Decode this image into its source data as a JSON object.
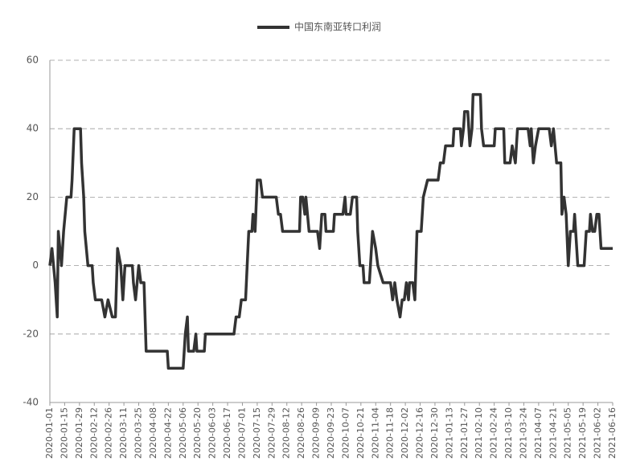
{
  "chart_data": {
    "type": "line",
    "x": [
      "2020-01-01",
      "2020-01-03",
      "2020-01-06",
      "2020-01-08",
      "2020-01-09",
      "2020-01-12",
      "2020-01-14",
      "2020-01-17",
      "2020-01-21",
      "2020-01-22",
      "2020-01-24",
      "2020-01-30",
      "2020-01-31",
      "2020-02-02",
      "2020-02-03",
      "2020-02-06",
      "2020-02-10",
      "2020-02-11",
      "2020-02-13",
      "2020-02-19",
      "2020-02-22",
      "2020-02-25",
      "2020-02-29",
      "2020-03-03",
      "2020-03-05",
      "2020-03-08",
      "2020-03-10",
      "2020-03-12",
      "2020-03-19",
      "2020-03-20",
      "2020-03-22",
      "2020-03-25",
      "2020-03-27",
      "2020-03-30",
      "2020-04-01",
      "2020-04-21",
      "2020-04-22",
      "2020-05-06",
      "2020-05-08",
      "2020-05-10",
      "2020-05-11",
      "2020-05-16",
      "2020-05-18",
      "2020-05-19",
      "2020-05-26",
      "2020-05-27",
      "2020-06-23",
      "2020-06-25",
      "2020-06-28",
      "2020-06-30",
      "2020-07-04",
      "2020-07-07",
      "2020-07-10",
      "2020-07-11",
      "2020-07-13",
      "2020-07-15",
      "2020-07-18",
      "2020-07-20",
      "2020-08-02",
      "2020-08-04",
      "2020-08-06",
      "2020-08-08",
      "2020-08-24",
      "2020-08-25",
      "2020-08-27",
      "2020-08-29",
      "2020-08-30",
      "2020-09-02",
      "2020-09-10",
      "2020-09-12",
      "2020-09-14",
      "2020-09-17",
      "2020-09-18",
      "2020-09-25",
      "2020-09-26",
      "2020-10-04",
      "2020-10-06",
      "2020-10-07",
      "2020-10-11",
      "2020-10-13",
      "2020-10-17",
      "2020-10-18",
      "2020-10-20",
      "2020-10-23",
      "2020-10-24",
      "2020-10-29",
      "2020-11-01",
      "2020-11-04",
      "2020-11-06",
      "2020-11-11",
      "2020-11-18",
      "2020-11-20",
      "2020-11-22",
      "2020-11-24",
      "2020-11-27",
      "2020-11-29",
      "2020-12-01",
      "2020-12-03",
      "2020-12-05",
      "2020-12-06",
      "2020-12-09",
      "2020-12-11",
      "2020-12-13",
      "2020-12-17",
      "2020-12-19",
      "2020-12-23",
      "2021-01-02",
      "2021-01-04",
      "2021-01-07",
      "2021-01-09",
      "2021-01-16",
      "2021-01-17",
      "2021-01-23",
      "2021-01-24",
      "2021-01-26",
      "2021-01-27",
      "2021-01-30",
      "2021-02-01",
      "2021-02-03",
      "2021-02-04",
      "2021-02-11",
      "2021-02-12",
      "2021-02-14",
      "2021-02-24",
      "2021-02-25",
      "2021-03-05",
      "2021-03-06",
      "2021-03-11",
      "2021-03-13",
      "2021-03-16",
      "2021-03-18",
      "2021-03-28",
      "2021-03-30",
      "2021-03-31",
      "2021-04-02",
      "2021-04-04",
      "2021-04-07",
      "2021-04-17",
      "2021-04-19",
      "2021-04-21",
      "2021-04-24",
      "2021-04-28",
      "2021-04-29",
      "2021-05-01",
      "2021-05-03",
      "2021-05-05",
      "2021-05-07",
      "2021-05-10",
      "2021-05-11",
      "2021-05-14",
      "2021-05-20",
      "2021-05-22",
      "2021-05-25",
      "2021-05-26",
      "2021-05-28",
      "2021-05-30",
      "2021-06-01",
      "2021-06-03",
      "2021-06-05",
      "2021-06-16"
    ],
    "series": [
      {
        "name": "中国东南亚转口利润",
        "color": "#333333",
        "values": [
          0,
          5,
          -5,
          -15,
          10,
          0,
          10,
          20,
          20,
          25,
          40,
          40,
          30,
          20,
          10,
          0,
          0,
          -5,
          -10,
          -10,
          -15,
          -10,
          -15,
          -15,
          5,
          0,
          -10,
          0,
          0,
          -5,
          -10,
          0,
          -5,
          -5,
          -25,
          -25,
          -30,
          -30,
          -20,
          -15,
          -25,
          -25,
          -20,
          -25,
          -25,
          -20,
          -20,
          -15,
          -15,
          -10,
          -10,
          10,
          10,
          15,
          10,
          25,
          25,
          20,
          20,
          15,
          15,
          10,
          10,
          20,
          20,
          15,
          20,
          10,
          10,
          5,
          15,
          15,
          10,
          10,
          15,
          15,
          20,
          15,
          15,
          20,
          20,
          10,
          0,
          0,
          -5,
          -5,
          10,
          5,
          0,
          -5,
          -5,
          -10,
          -5,
          -10,
          -15,
          -10,
          -10,
          -5,
          -10,
          -5,
          -5,
          -10,
          10,
          10,
          20,
          25,
          25,
          30,
          30,
          35,
          35,
          40,
          40,
          35,
          40,
          45,
          45,
          35,
          40,
          50,
          50,
          40,
          35,
          35,
          40,
          40,
          30,
          30,
          35,
          30,
          40,
          40,
          35,
          40,
          30,
          35,
          40,
          40,
          35,
          40,
          30,
          30,
          15,
          20,
          15,
          0,
          10,
          10,
          15,
          0,
          0,
          10,
          10,
          15,
          10,
          10,
          15,
          15,
          5,
          5
        ]
      }
    ],
    "xlim": [
      "2020-01-01",
      "2021-06-16"
    ],
    "xticks": [
      "2020-01-01",
      "2020-01-15",
      "2020-01-29",
      "2020-02-12",
      "2020-02-26",
      "2020-03-11",
      "2020-03-25",
      "2020-04-08",
      "2020-04-22",
      "2020-05-06",
      "2020-05-20",
      "2020-06-03",
      "2020-06-17",
      "2020-07-01",
      "2020-07-15",
      "2020-07-29",
      "2020-08-12",
      "2020-08-26",
      "2020-09-09",
      "2020-09-23",
      "2020-10-07",
      "2020-10-21",
      "2020-11-04",
      "2020-11-18",
      "2020-12-02",
      "2020-12-16",
      "2020-12-30",
      "2021-01-13",
      "2021-01-27",
      "2021-02-10",
      "2021-02-24",
      "2021-03-10",
      "2021-03-24",
      "2021-04-07",
      "2021-04-21",
      "2021-05-05",
      "2021-05-19",
      "2021-06-02",
      "2021-06-16"
    ],
    "ylim": [
      -40,
      60
    ],
    "yticks": [
      -40,
      -20,
      0,
      20,
      40,
      60
    ],
    "grid": true,
    "legend": "top"
  }
}
